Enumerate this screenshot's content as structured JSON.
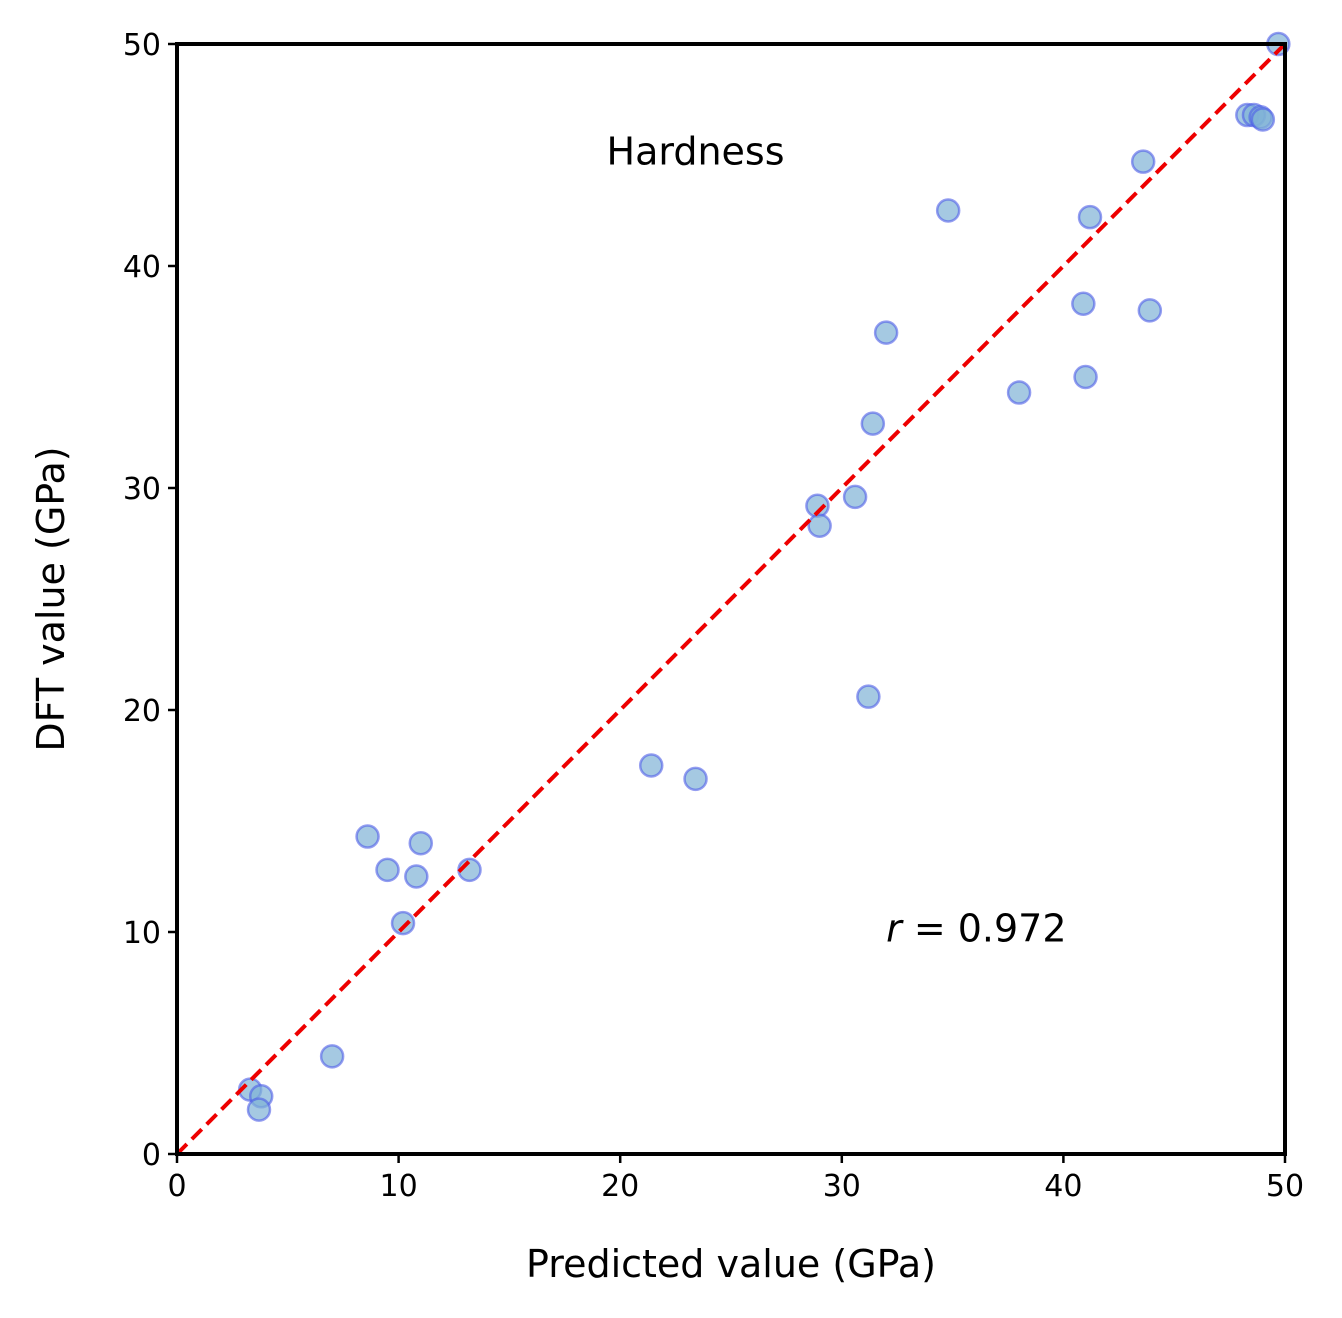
{
  "chart_data": {
    "type": "scatter",
    "annotation_title": "Hardness",
    "annotation_r_symbol": "r",
    "annotation_r_rest": " = 0.972",
    "xlabel": "Predicted value (GPa)",
    "ylabel": "DFT value (GPa)",
    "xlim": [
      0,
      50
    ],
    "ylim": [
      0,
      50
    ],
    "xticks": [
      0,
      10,
      20,
      30,
      40,
      50
    ],
    "yticks": [
      0,
      10,
      20,
      30,
      40,
      50
    ],
    "grid": false,
    "reference_line": {
      "style": "dashed",
      "color": "#ee0000",
      "from": [
        0,
        0
      ],
      "to": [
        50,
        50
      ]
    },
    "point_fill": "#7fb2d5",
    "point_edge": "#4f5ee8",
    "points": [
      {
        "x": 3.3,
        "y": 2.9
      },
      {
        "x": 3.8,
        "y": 2.6
      },
      {
        "x": 3.7,
        "y": 2.0
      },
      {
        "x": 7.0,
        "y": 4.4
      },
      {
        "x": 8.6,
        "y": 14.3
      },
      {
        "x": 9.5,
        "y": 12.8
      },
      {
        "x": 10.2,
        "y": 10.4
      },
      {
        "x": 10.8,
        "y": 12.5
      },
      {
        "x": 11.0,
        "y": 14.0
      },
      {
        "x": 13.2,
        "y": 12.8
      },
      {
        "x": 21.4,
        "y": 17.5
      },
      {
        "x": 23.4,
        "y": 16.9
      },
      {
        "x": 28.9,
        "y": 29.2
      },
      {
        "x": 29.0,
        "y": 28.3
      },
      {
        "x": 30.6,
        "y": 29.6
      },
      {
        "x": 31.2,
        "y": 20.6
      },
      {
        "x": 31.4,
        "y": 32.9
      },
      {
        "x": 32.0,
        "y": 37.0
      },
      {
        "x": 34.8,
        "y": 42.5
      },
      {
        "x": 38.0,
        "y": 34.3
      },
      {
        "x": 40.9,
        "y": 38.3
      },
      {
        "x": 41.0,
        "y": 35.0
      },
      {
        "x": 41.2,
        "y": 42.2
      },
      {
        "x": 43.6,
        "y": 44.7
      },
      {
        "x": 43.9,
        "y": 38.0
      },
      {
        "x": 48.3,
        "y": 46.8
      },
      {
        "x": 48.6,
        "y": 46.8
      },
      {
        "x": 48.9,
        "y": 46.7
      },
      {
        "x": 49.0,
        "y": 46.6
      },
      {
        "x": 49.7,
        "y": 50.0
      }
    ]
  }
}
